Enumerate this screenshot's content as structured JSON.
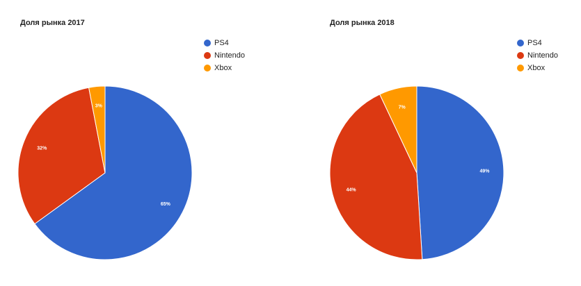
{
  "chart_data": [
    {
      "type": "pie",
      "title": "Доля рынка 2017",
      "categories": [
        "PS4",
        "Nintendo",
        "Xbox"
      ],
      "values": [
        65,
        32,
        3
      ],
      "labels": [
        "65%",
        "32%",
        "3%"
      ],
      "colors": [
        "#3366cc",
        "#dc3912",
        "#ff9900"
      ],
      "legend": "right"
    },
    {
      "type": "pie",
      "title": "Доля рынка 2018",
      "categories": [
        "PS4",
        "Nintendo",
        "Xbox"
      ],
      "values": [
        49,
        44,
        7
      ],
      "labels": [
        "49%",
        "44%",
        "7%"
      ],
      "colors": [
        "#3366cc",
        "#dc3912",
        "#ff9900"
      ],
      "legend": "right"
    }
  ]
}
